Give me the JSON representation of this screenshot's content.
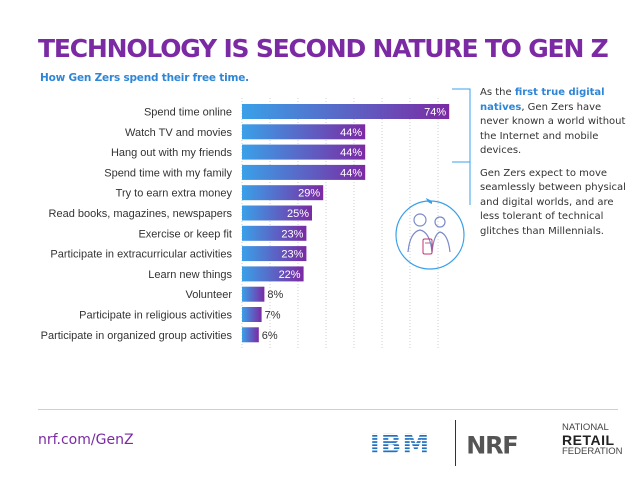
{
  "header": {
    "title": "TECHNOLOGY IS SECOND NATURE TO GEN Z",
    "subtitle": "How Gen Zers spend their free time."
  },
  "chart_data": {
    "type": "bar",
    "orientation": "horizontal",
    "categories": [
      "Spend time online",
      "Watch TV and movies",
      "Hang out with my friends",
      "Spend time with my family",
      "Try to earn extra money",
      "Read books, magazines, newspapers",
      "Exercise or keep fit",
      "Participate in extracurricular activities",
      "Learn new things",
      "Volunteer",
      "Participate in religious activities",
      "Participate in organized group activities"
    ],
    "values": [
      74,
      44,
      44,
      44,
      29,
      25,
      23,
      23,
      22,
      8,
      7,
      6
    ],
    "value_labels": [
      "74%",
      "44%",
      "44%",
      "44%",
      "29%",
      "25%",
      "23%",
      "23%",
      "22%",
      "8%",
      "7%",
      "6%"
    ],
    "xlim": [
      0,
      100
    ],
    "grid": true,
    "bar_gradient": [
      "#3aa0e8",
      "#7b2aa3"
    ]
  },
  "sidebar": {
    "para1_pre": "As the ",
    "para1_highlight": "first true digital natives",
    "para1_post": ", Gen Zers have never known a world without the Internet and mobile devices.",
    "para2": "Gen Zers expect to move seamlessly between physical and digital worlds, and are less tolerant of technical glitches than Millennials.",
    "icon": "family-with-phone-icon"
  },
  "footer": {
    "url": "nrf.com/GenZ",
    "logo1": "IBM",
    "logo2": "NRF",
    "logo2_line1": "NATIONAL",
    "logo2_line2": "RETAIL",
    "logo2_line3": "FEDERATION"
  },
  "colors": {
    "title": "#7b2aa3",
    "subtitle": "#2e86d6",
    "ibm": "#1f70c1",
    "nrf_red": "#d9232e",
    "nrf_gray": "#555555"
  }
}
